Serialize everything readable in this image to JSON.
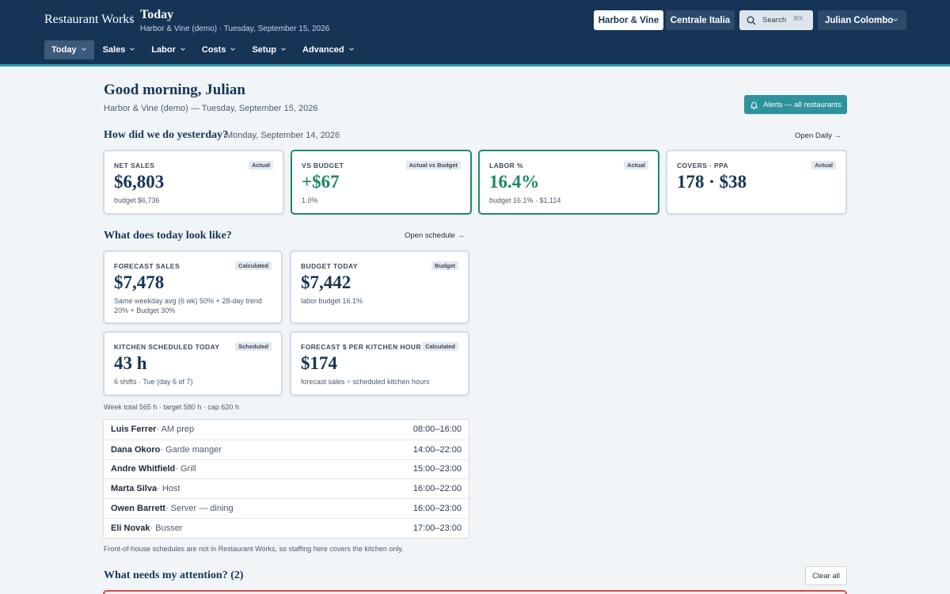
{
  "header": {
    "brand": "Restaurant Works",
    "separator": "/",
    "page_title": "Today",
    "page_subtitle": "Harbor & Vine (demo) · Tuesday, September 15, 2026",
    "restaurant_buttons": [
      "Harbor & Vine",
      "Centrale Italia"
    ],
    "search_label": "Search",
    "search_shortcut": "⌘K",
    "user_name": "Julian Colombo"
  },
  "nav": {
    "items": [
      {
        "label": "Today",
        "active": true
      },
      {
        "label": "Sales"
      },
      {
        "label": "Labor"
      },
      {
        "label": "Costs"
      },
      {
        "label": "Setup"
      },
      {
        "label": "Advanced"
      }
    ]
  },
  "greeting": {
    "title": "Good morning, Julian",
    "subtitle": "Harbor & Vine (demo) — Tuesday, September 15, 2026",
    "alerts_button": "Alerts — all restaurants"
  },
  "yesterday": {
    "heading": "How did we do yesterday?",
    "date": "Monday, September 14, 2026",
    "link": "Open Daily →",
    "cards": [
      {
        "label": "NET SALES",
        "tag": "Actual",
        "value": "$6,803",
        "note": "budget $6,736"
      },
      {
        "label": "VS BUDGET",
        "tag": "Actual vs Budget",
        "value": "+$67",
        "note": "1.0%"
      },
      {
        "label": "LABOR %",
        "tag": "Actual",
        "value": "16.4%",
        "note": "budget 16.1% · $1,114"
      },
      {
        "label": "COVERS · PPA",
        "tag": "Actual",
        "value": "178 · $38",
        "note": ""
      }
    ]
  },
  "today": {
    "heading": "What does today look like?",
    "link": "Open schedule →",
    "cards": [
      {
        "label": "FORECAST SALES",
        "tag": "Calculated",
        "value": "$7,478",
        "note": "Same weekday avg (6 wk) 50% + 28-day trend 20% + Budget 30%"
      },
      {
        "label": "BUDGET TODAY",
        "tag": "Budget",
        "value": "$7,442",
        "note": "labor budget 16.1%"
      },
      {
        "label": "KITCHEN SCHEDULED TODAY",
        "tag": "Scheduled",
        "value": "43 h",
        "note": "6 shifts · Tue (day 6 of 7)"
      },
      {
        "label": "FORECAST $ PER KITCHEN HOUR",
        "tag": "Calculated",
        "value": "$174",
        "note": "forecast sales ÷ scheduled kitchen hours"
      }
    ],
    "week_total": "Week total 565 h · target 580 h · cap 620 h",
    "shifts": [
      {
        "name": "Luis Ferrer",
        "role": " · AM prep",
        "time": "08:00–16:00"
      },
      {
        "name": "Dana Okoro",
        "role": " · Garde manger",
        "time": "14:00–22:00"
      },
      {
        "name": "Andre Whitfield",
        "role": " · Grill",
        "time": "15:00–23:00"
      },
      {
        "name": "Marta Silva",
        "role": " · Host",
        "time": "16:00–22:00"
      },
      {
        "name": "Owen Barrett",
        "role": " · Server — dining",
        "time": "16:00–23:00"
      },
      {
        "name": "Eli Novak",
        "role": " · Busser",
        "time": "17:00–23:00"
      }
    ],
    "footnote": "Front-of-house schedules are not in Restaurant Works, so staffing here covers the kitchen only."
  },
  "attention": {
    "heading": "What needs my attention? (2)",
    "clear_button": "Clear all"
  },
  "colors": {
    "header_bg": "#163556",
    "accent_teal": "#2e939c",
    "good_green": "#1a8a65",
    "alert_red": "#d44a4a"
  }
}
